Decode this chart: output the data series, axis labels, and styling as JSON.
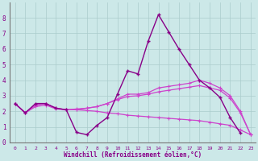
{
  "xlabel": "Windchill (Refroidissement éolien,°C)",
  "xlim": [
    -0.5,
    23.5
  ],
  "ylim": [
    0,
    9
  ],
  "xticks": [
    0,
    1,
    2,
    3,
    4,
    5,
    6,
    7,
    8,
    9,
    10,
    11,
    12,
    13,
    14,
    15,
    16,
    17,
    18,
    19,
    20,
    21,
    22,
    23
  ],
  "yticks": [
    0,
    1,
    2,
    3,
    4,
    5,
    6,
    7,
    8
  ],
  "background_color": "#cce8e8",
  "grid_color": "#aacccc",
  "line_color_dark": "#880088",
  "line_color_mid": "#cc44cc",
  "series": {
    "line_spiky": [
      2.5,
      1.9,
      2.5,
      2.5,
      2.2,
      2.1,
      0.65,
      0.5,
      1.1,
      1.6,
      3.1,
      4.6,
      4.4,
      6.5,
      8.2,
      7.1,
      6.0,
      5.0,
      4.0,
      3.5,
      2.9,
      1.6,
      0.6,
      null
    ],
    "line_low": [
      2.5,
      1.9,
      2.3,
      2.4,
      2.15,
      2.1,
      2.1,
      2.05,
      2.0,
      1.9,
      1.85,
      1.75,
      1.7,
      1.65,
      1.6,
      1.55,
      1.5,
      1.45,
      1.4,
      1.3,
      1.2,
      1.1,
      0.8,
      0.5
    ],
    "line_mid1": [
      2.5,
      1.9,
      2.4,
      2.5,
      2.2,
      2.1,
      2.1,
      2.2,
      2.3,
      2.5,
      2.8,
      3.1,
      3.1,
      3.2,
      3.5,
      3.6,
      3.7,
      3.8,
      4.0,
      3.8,
      3.5,
      3.0,
      2.0,
      0.5
    ],
    "line_mid2": [
      2.5,
      1.9,
      2.4,
      2.5,
      2.2,
      2.1,
      2.15,
      2.2,
      2.3,
      2.5,
      2.75,
      2.95,
      3.0,
      3.1,
      3.25,
      3.35,
      3.45,
      3.55,
      3.65,
      3.5,
      3.35,
      2.85,
      1.9,
      0.5
    ]
  }
}
